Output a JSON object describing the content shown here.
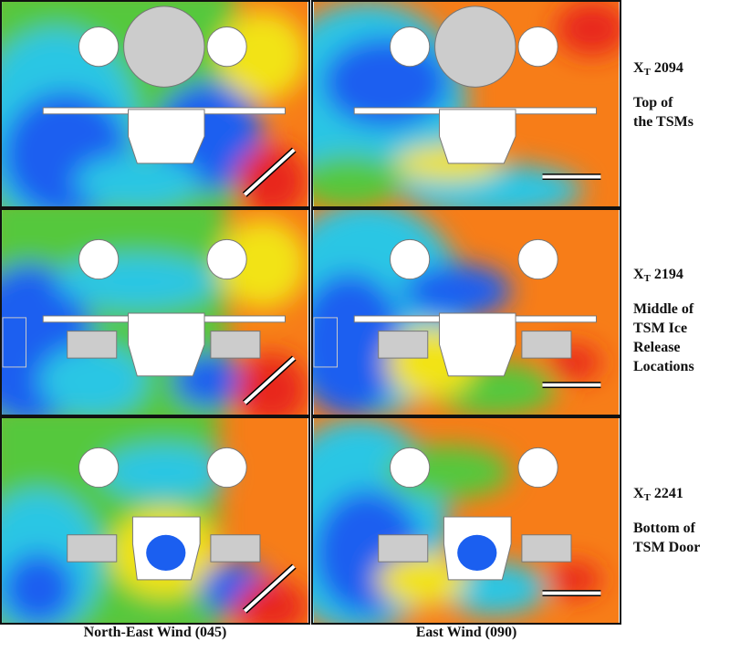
{
  "columns": [
    {
      "label": "North-East Wind (045)",
      "arrow": "down-left"
    },
    {
      "label": "East Wind (090)",
      "arrow": "left"
    }
  ],
  "rows": [
    {
      "station_prefix": "X",
      "station_sub": "T",
      "station_value": "2094",
      "desc_lines": [
        "Top of",
        "the TSMs"
      ]
    },
    {
      "station_prefix": "X",
      "station_sub": "T",
      "station_value": "2194",
      "desc_lines": [
        "Middle of",
        "TSM Ice",
        "Release",
        "Locations"
      ]
    },
    {
      "station_prefix": "X",
      "station_sub": "T",
      "station_value": "2241",
      "desc_lines": [
        "Bottom of",
        "TSM Door"
      ]
    }
  ],
  "colors": {
    "red": "#e8281a",
    "orange": "#f77d18",
    "yellow": "#f2e319",
    "green": "#54c83c",
    "cyan": "#2cc6e4",
    "blue": "#1b5ff0"
  }
}
